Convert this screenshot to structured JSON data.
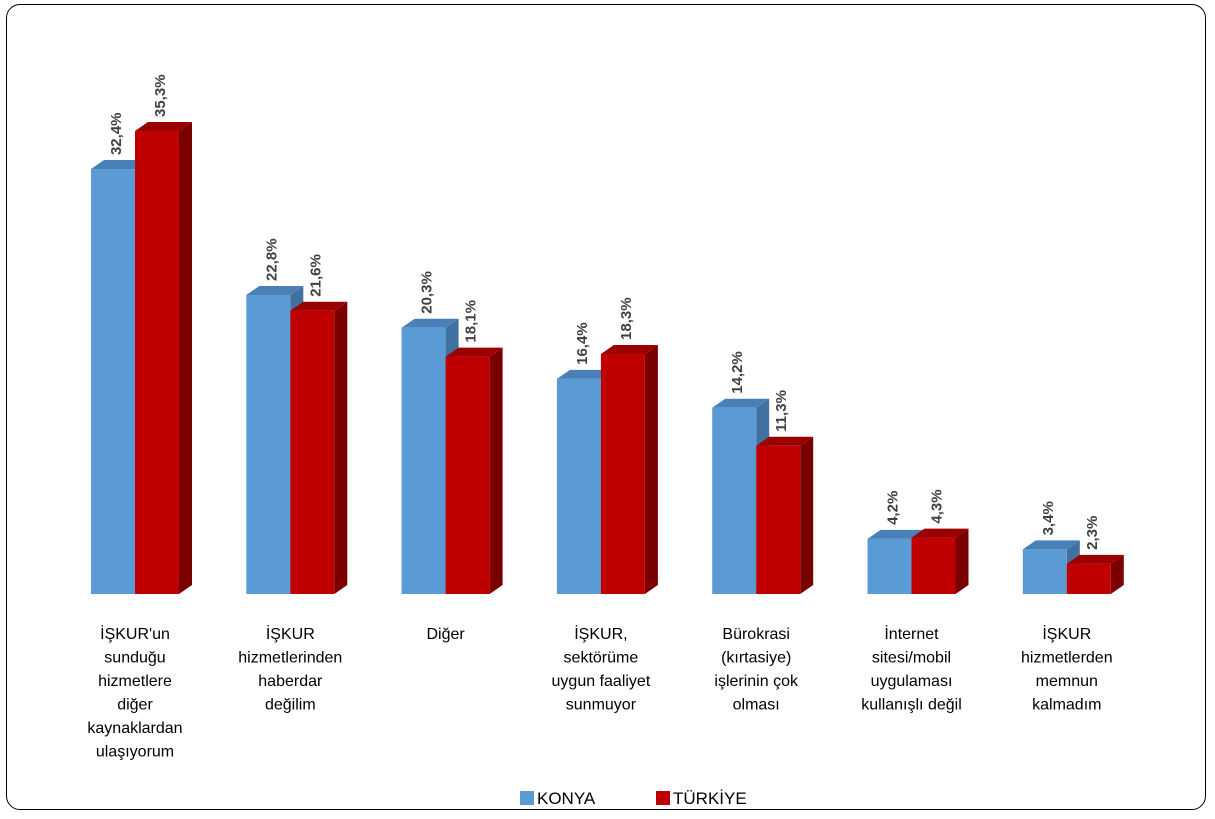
{
  "chart_data": {
    "type": "bar",
    "categories": [
      [
        "İŞKUR'un",
        "sunduğu",
        "hizmetlere",
        "diğer",
        "kaynaklardan",
        "ulaşıyorum"
      ],
      [
        "İŞKUR",
        "hizmetlerinden",
        "haberdar",
        "değilim"
      ],
      [
        "Diğer"
      ],
      [
        "İŞKUR,",
        "sektörüme",
        "uygun faaliyet",
        "sunmuyor"
      ],
      [
        "Bürokrasi",
        "(kırtasiye)",
        "işlerinin çok",
        "olması"
      ],
      [
        "İnternet",
        "sitesi/mobil",
        "uygulaması",
        "kullanışlı değil"
      ],
      [
        "İŞKUR",
        "hizmetlerden",
        "memnun",
        "kalmadım"
      ]
    ],
    "series": [
      {
        "name": "KONYA",
        "color": "#5b9bd5",
        "values": [
          32.4,
          22.8,
          20.3,
          16.4,
          14.2,
          4.2,
          3.4
        ],
        "labels": [
          "32,4%",
          "22,8%",
          "20,3%",
          "16,4%",
          "14,2%",
          "4,2%",
          "3,4%"
        ]
      },
      {
        "name": "TÜRKİYE",
        "color": "#c00000",
        "values": [
          35.3,
          21.6,
          18.1,
          18.3,
          11.3,
          4.3,
          2.3
        ],
        "labels": [
          "35,3%",
          "21,6%",
          "18,1%",
          "18,3%",
          "11,3%",
          "4,3%",
          "2,3%"
        ]
      }
    ],
    "ylim": [
      0,
      35.3
    ],
    "grid": false,
    "legend_position": "bottom",
    "style": "3d-clustered-bar"
  }
}
